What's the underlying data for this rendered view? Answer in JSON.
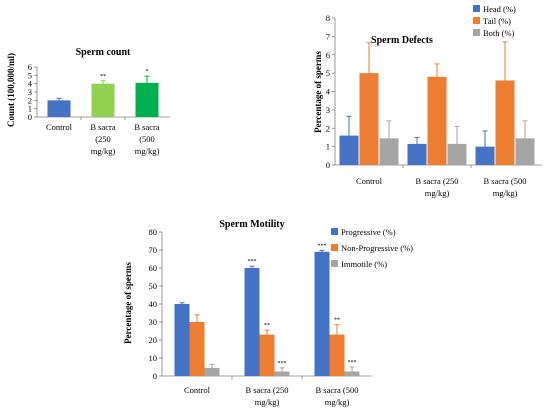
{
  "chart_data": [
    {
      "type": "bar",
      "title": "Sperm count",
      "ylabel": "Count (100,000/ml)",
      "xlabel": "",
      "categories": [
        [
          "Control"
        ],
        [
          "B sacra",
          "(250",
          "mg/kg)"
        ],
        [
          "B sacra",
          "(500",
          "mg/kg)"
        ]
      ],
      "values": [
        2.0,
        4.0,
        4.1
      ],
      "errors": [
        0.25,
        0.35,
        0.8
      ],
      "colors": [
        "#4472c4",
        "#92d050",
        "#00b050"
      ],
      "significance": [
        "",
        "**",
        "*"
      ],
      "ylim": [
        0,
        6
      ],
      "yticks": [
        0,
        1,
        2,
        3,
        4,
        5,
        6
      ],
      "grid": false,
      "legend": "none"
    },
    {
      "type": "bar",
      "title": "Sperm Defects",
      "ylabel": "Percentage of sperms",
      "xlabel": "",
      "categories": [
        [
          "Control"
        ],
        [
          "B sacra (250",
          "mg/kg)"
        ],
        [
          "B sacra (500",
          "mg/kg)"
        ]
      ],
      "series": [
        {
          "name": "Head (%)",
          "color": "#4472c4",
          "values": [
            1.6,
            1.15,
            1.0
          ],
          "errors": [
            1.05,
            0.35,
            0.85
          ]
        },
        {
          "name": "Tail (%)",
          "color": "#ed7d31",
          "values": [
            5.0,
            4.8,
            4.6
          ],
          "errors": [
            1.65,
            0.7,
            2.1
          ]
        },
        {
          "name": "Both (%)",
          "color": "#a5a5a5",
          "values": [
            1.45,
            1.15,
            1.45
          ],
          "errors": [
            0.95,
            0.95,
            0.95
          ]
        }
      ],
      "ylim": [
        0,
        8
      ],
      "yticks": [
        0,
        1,
        2,
        3,
        4,
        5,
        6,
        7,
        8
      ],
      "grid": false,
      "legend": "top-right"
    },
    {
      "type": "bar",
      "title": "Sperm Motility",
      "ylabel": "Percentage of sperms",
      "xlabel": "",
      "categories": [
        [
          "Control"
        ],
        [
          "B sacra (250",
          "mg/kg)"
        ],
        [
          "B sacra (500",
          "mg/kg)"
        ]
      ],
      "series": [
        {
          "name": "Progressive (%)",
          "color": "#4472c4",
          "values": [
            40,
            60,
            69
          ],
          "errors": [
            0.7,
            1.0,
            0.8
          ],
          "significance": [
            "",
            "***",
            "***"
          ]
        },
        {
          "name": "Non-Progressive (%)",
          "color": "#ed7d31",
          "values": [
            30,
            23,
            23
          ],
          "errors": [
            4.0,
            2.5,
            5.5
          ],
          "significance": [
            "",
            "**",
            "**"
          ]
        },
        {
          "name": "Immotile (%)",
          "color": "#a5a5a5",
          "values": [
            4.5,
            2.5,
            2.5
          ],
          "errors": [
            2.0,
            2.0,
            2.5
          ],
          "significance": [
            "",
            "***",
            "***"
          ]
        }
      ],
      "ylim": [
        0,
        80
      ],
      "yticks": [
        0,
        10,
        20,
        30,
        40,
        50,
        60,
        70,
        80
      ],
      "grid": false,
      "legend": "top-right"
    }
  ]
}
